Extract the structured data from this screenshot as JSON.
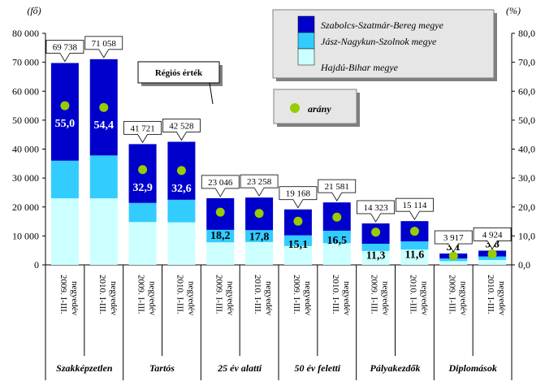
{
  "chart_data": {
    "type": "bar",
    "stacked": true,
    "left_unit": "(fő)",
    "right_unit": "(%)",
    "ylim": [
      0,
      80000
    ],
    "y_ticks": [
      "0",
      "10 000",
      "20 000",
      "30 000",
      "40 000",
      "50 000",
      "60 000",
      "70 000",
      "80 000"
    ],
    "y2lim": [
      0,
      80
    ],
    "y2_ticks": [
      "0,0",
      "10,0",
      "20,0",
      "30,0",
      "40,0",
      "50,0",
      "60,0",
      "70,0",
      "80,0"
    ],
    "period_labels": [
      "2009. I-III. negyedév",
      "2010. I-III. negyedév",
      "2009. I-III. negyedév",
      "2010. I-III. negyedév",
      "2009. I-III. negyedév",
      "2010. I-III. negyedév",
      "2009. I-III. negyedév",
      "2010. I-III. negyedév",
      "2009. I-III. negyedév",
      "2010. I-III. negyedév",
      "2009. I-III. negyedév",
      "2010. I-III. negyedév"
    ],
    "groups": [
      "Szakképzetlen",
      "Tartós",
      "25 év alatti",
      "50 év feletti",
      "Pályakezdők",
      "Diplomások"
    ],
    "series": [
      {
        "name": "Hajdú-Bihar megye",
        "color": "#ccffff",
        "values": [
          23000,
          23000,
          14800,
          14700,
          7800,
          7900,
          6500,
          7500,
          4800,
          5300,
          1300,
          1700
        ]
      },
      {
        "name": "Jász-Nagykun-Szolnok megye",
        "color": "#33ccff",
        "values": [
          13000,
          14800,
          6600,
          7800,
          4300,
          4100,
          3700,
          4300,
          2500,
          2800,
          900,
          1200
        ]
      },
      {
        "name": "Szabolcs-Szatmár-Bereg megye",
        "color": "#0000cc",
        "values": [
          33738,
          33258,
          20321,
          20028,
          10946,
          11258,
          8968,
          9781,
          7023,
          7014,
          1717,
          2024
        ]
      }
    ],
    "totals": [
      "69 738",
      "71 058",
      "41 721",
      "42 528",
      "23 046",
      "23 258",
      "19 168",
      "21 581",
      "14 323",
      "15 114",
      "3 917",
      "4 924"
    ],
    "total_values": [
      69738,
      71058,
      41721,
      42528,
      23046,
      23258,
      19168,
      21581,
      14323,
      15114,
      3917,
      4924
    ],
    "arany": {
      "name": "arány",
      "color": "#99cc00",
      "values": [
        55.0,
        54.4,
        32.9,
        32.6,
        18.2,
        17.8,
        15.1,
        16.5,
        11.3,
        11.6,
        3.1,
        3.8
      ],
      "labels": [
        "55,0",
        "54,4",
        "32,9",
        "32,6",
        "18,2",
        "17,8",
        "15,1",
        "16,5",
        "11,3",
        "11,6",
        "3,1",
        "3,8"
      ]
    },
    "annotation": "Régiós érték"
  }
}
